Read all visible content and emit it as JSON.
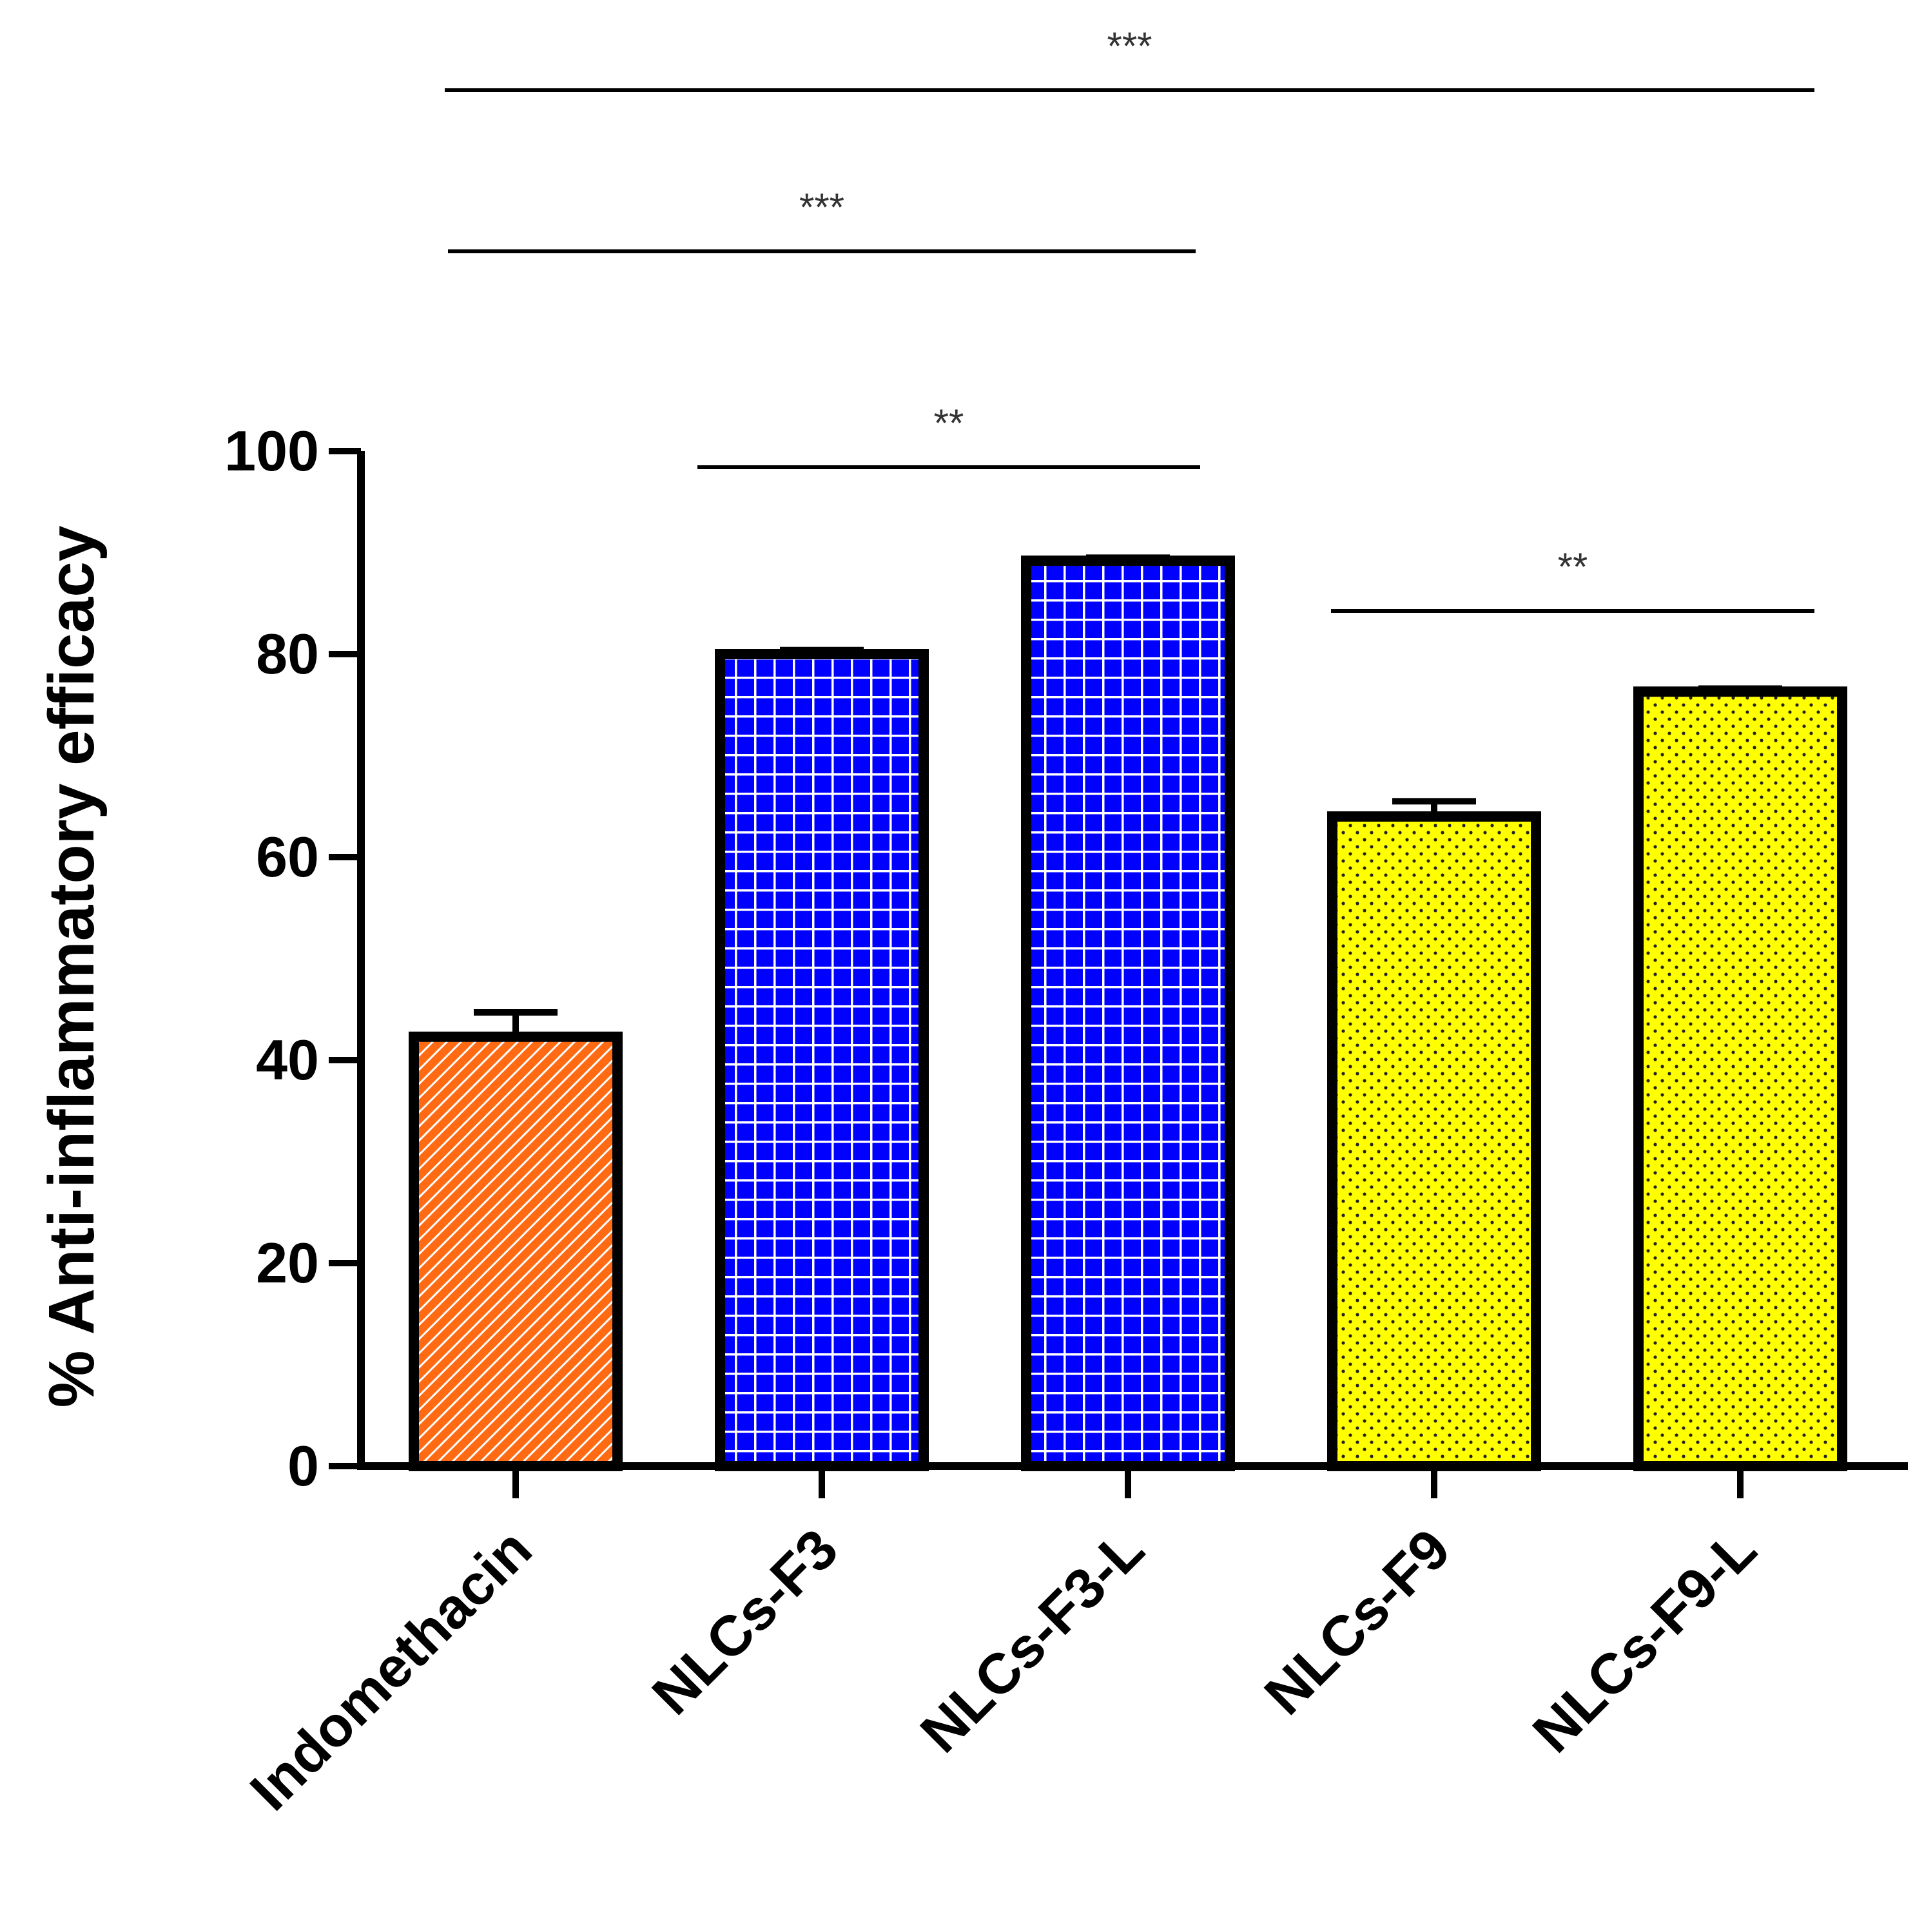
{
  "chart_data": {
    "type": "bar",
    "title": "",
    "xlabel": "",
    "ylabel": "% Anti-inflammatory efficacy",
    "ylim": [
      0,
      100
    ],
    "yticks": [
      0,
      20,
      40,
      60,
      80,
      100
    ],
    "categories": [
      "Indomethacin",
      "NLCs-F3",
      "NLCs-F3-L",
      "NLCs-F9",
      "NLCs-F9-L"
    ],
    "values": [
      42.3,
      80.0,
      89.2,
      64.0,
      76.3
    ],
    "errors": [
      2.4,
      0.4,
      0.3,
      1.5,
      0.3
    ],
    "fills": [
      {
        "color": "#ff6a13",
        "pattern": "diagonal-hatch"
      },
      {
        "color": "#0000ff",
        "pattern": "grid"
      },
      {
        "color": "#0000ff",
        "pattern": "grid"
      },
      {
        "color": "#ffff00",
        "pattern": "dots"
      },
      {
        "color": "#ffff00",
        "pattern": "dots"
      }
    ],
    "significance": [
      {
        "from": 0,
        "to": 4,
        "label": "***"
      },
      {
        "from": 0,
        "to": 2,
        "label": "***"
      },
      {
        "from": 1,
        "to": 2,
        "label": "**"
      },
      {
        "from": 3,
        "to": 4,
        "label": "**"
      }
    ]
  }
}
